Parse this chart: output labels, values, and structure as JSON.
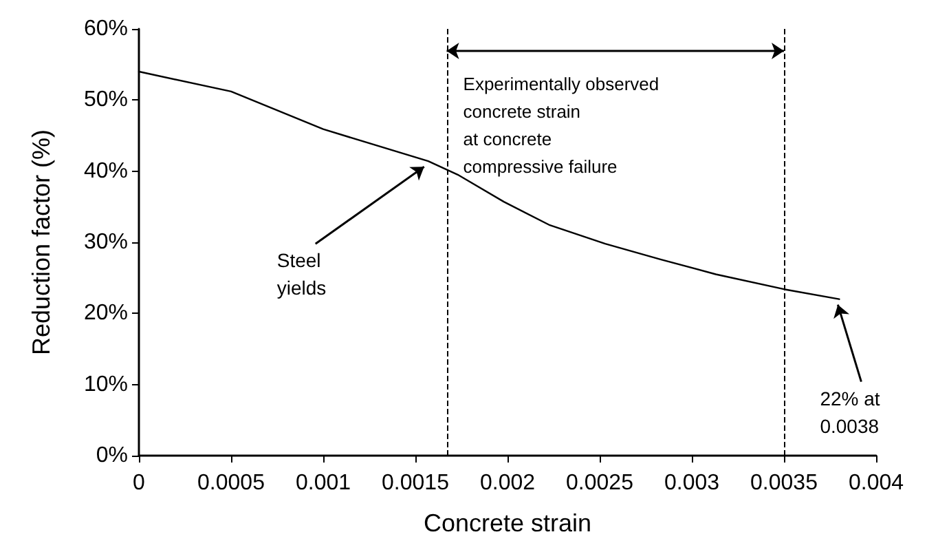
{
  "chart_data": {
    "type": "line",
    "xlabel": "Concrete strain",
    "ylabel": "Reduction factor (%)",
    "x": [
      0,
      0.0005,
      0.001,
      0.00157,
      0.00173,
      0.00198,
      0.00223,
      0.00253,
      0.00283,
      0.00313,
      0.0035,
      0.0038
    ],
    "series": [
      {
        "color": "#000000",
        "values": [
          54,
          51.2,
          45.9,
          41.4,
          39.5,
          35.7,
          32.4,
          29.8,
          27.6,
          25.5,
          23.4,
          22
        ]
      }
    ],
    "xlim": [
      0,
      0.004
    ],
    "xticks": [
      0,
      0.0005,
      0.001,
      0.0015,
      0.002,
      0.0025,
      0.003,
      0.0035,
      0.004
    ],
    "ylim": [
      0,
      60
    ],
    "yticks": [
      {
        "value": 0,
        "label": "0%"
      },
      {
        "value": 10,
        "label": "10%"
      },
      {
        "value": 20,
        "label": "20%"
      },
      {
        "value": 30,
        "label": "30%"
      },
      {
        "value": 40,
        "label": "40%"
      },
      {
        "value": 50,
        "label": "50%"
      },
      {
        "value": 60,
        "label": "60%"
      }
    ],
    "ref_lines": [
      {
        "axis": "x",
        "value": 0.00167,
        "line_style": "dashed"
      },
      {
        "axis": "x",
        "value": 0.0035,
        "line_style": "dashed"
      }
    ],
    "annotations": [
      {
        "text": "Steel\nyields",
        "x": 0.00157,
        "y": 41.4
      },
      {
        "text": "22% at\n0.0038",
        "x": 0.0038,
        "y": 22
      },
      "Experimentally observed\nconcrete strain\nat concrete\ncompressive failure"
    ],
    "marker": "none",
    "line_style": "solid",
    "grid": false
  }
}
